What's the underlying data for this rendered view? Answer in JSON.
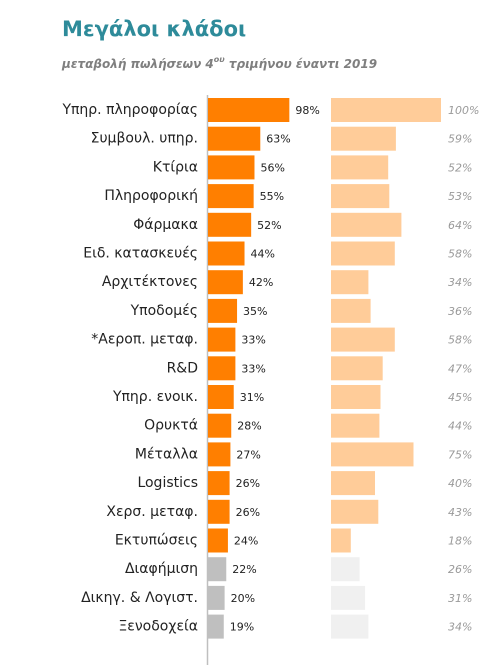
{
  "chart_data": {
    "type": "bar",
    "title": "Μεγάλοι κλάδοι",
    "subtitle": {
      "before": "μεταβολή πωλήσεων 4",
      "sup": "ου",
      "after": " τριμήνου έναντι 2019"
    },
    "categories": [
      "Υπηρ. πληροφορίας",
      "Συμβουλ. υπηρ.",
      "Κτίρια",
      "Πληροφορική",
      "Φάρμακα",
      "Ειδ. κατασκευές",
      "Αρχιτέκτονες",
      "Υποδομές",
      "*Αεροπ. μεταφ.",
      "R&D",
      "Υπηρ. ενοικ.",
      "Ορυκτά",
      "Μέταλλα",
      "Logistics",
      "Χερσ. μεταφ.",
      "Εκτυπώσεις",
      "Διαφήμιση",
      "Δικηγ. & Λογιστ.",
      "Ξενοδοχεία"
    ],
    "series": [
      {
        "values": [
          98,
          63,
          56,
          55,
          52,
          44,
          42,
          35,
          33,
          33,
          31,
          28,
          27,
          26,
          26,
          24,
          22,
          20,
          19
        ],
        "value_labels": [
          "98%",
          "63%",
          "56%",
          "55%",
          "52%",
          "44%",
          "42%",
          "35%",
          "33%",
          "33%",
          "31%",
          "28%",
          "27%",
          "26%",
          "26%",
          "24%",
          "22%",
          "20%",
          "19%"
        ],
        "colors": [
          "#ff7f00",
          "#ff7f00",
          "#ff7f00",
          "#ff7f00",
          "#ff7f00",
          "#ff7f00",
          "#ff7f00",
          "#ff7f00",
          "#ff7f00",
          "#ff7f00",
          "#ff7f00",
          "#ff7f00",
          "#ff7f00",
          "#ff7f00",
          "#ff7f00",
          "#ff7f00",
          "#bfbfbf",
          "#bfbfbf",
          "#bfbfbf"
        ]
      },
      {
        "values": [
          100,
          59,
          52,
          53,
          64,
          58,
          34,
          36,
          58,
          47,
          45,
          44,
          75,
          40,
          43,
          18,
          26,
          31,
          34
        ],
        "value_labels": [
          "100%",
          "59%",
          "52%",
          "53%",
          "64%",
          "58%",
          "34%",
          "36%",
          "58%",
          "47%",
          "45%",
          "44%",
          "75%",
          "40%",
          "43%",
          "18%",
          "26%",
          "31%",
          "34%"
        ],
        "colors": [
          "#ffcc99",
          "#ffcc99",
          "#ffcc99",
          "#ffcc99",
          "#ffcc99",
          "#ffcc99",
          "#ffcc99",
          "#ffcc99",
          "#ffcc99",
          "#ffcc99",
          "#ffcc99",
          "#ffcc99",
          "#ffcc99",
          "#ffcc99",
          "#ffcc99",
          "#ffcc99",
          "#f0f0f0",
          "#f0f0f0",
          "#f0f0f0"
        ]
      }
    ]
  }
}
